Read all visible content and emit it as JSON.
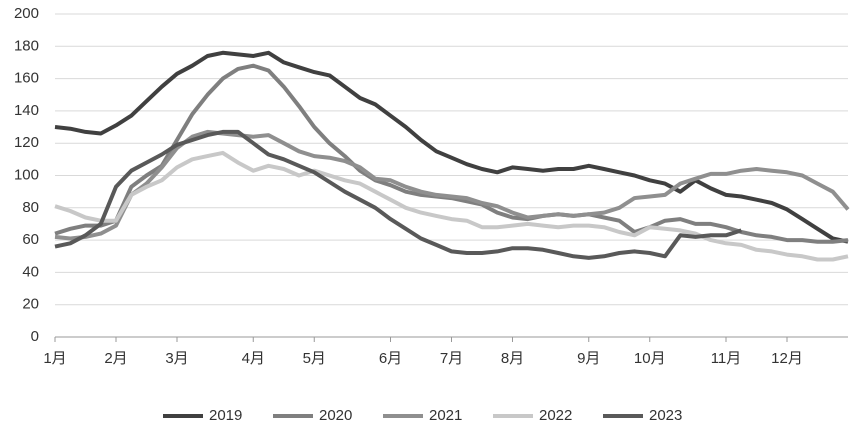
{
  "chart_data": {
    "type": "line",
    "categories": [
      "1月",
      null,
      null,
      null,
      "2月",
      null,
      null,
      null,
      "3月",
      null,
      null,
      null,
      null,
      "4月",
      null,
      null,
      null,
      "5月",
      null,
      null,
      null,
      null,
      "6月",
      null,
      null,
      null,
      "7月",
      null,
      null,
      null,
      "8月",
      null,
      null,
      null,
      null,
      "9月",
      null,
      null,
      null,
      "10月",
      null,
      null,
      null,
      null,
      "11月",
      null,
      null,
      null,
      "12月",
      null,
      null,
      null,
      null
    ],
    "ylim": [
      0,
      200
    ],
    "yticks": [
      0,
      20,
      40,
      60,
      80,
      100,
      120,
      140,
      160,
      180,
      200
    ],
    "grid": true,
    "legend": "bottom",
    "series": [
      {
        "name": "2019",
        "color": "#404040",
        "values": [
          130,
          129,
          127,
          126,
          131,
          137,
          146,
          155,
          163,
          168,
          174,
          176,
          175,
          174,
          176,
          170,
          167,
          164,
          162,
          155,
          148,
          144,
          137,
          130,
          122,
          115,
          111,
          107,
          104,
          102,
          105,
          104,
          103,
          104,
          104,
          106,
          104,
          102,
          100,
          97,
          95,
          90,
          97,
          92,
          88,
          87,
          85,
          83,
          79,
          73,
          67,
          61,
          59
        ]
      },
      {
        "name": "2020",
        "color": "#7f7f7f",
        "values": [
          64,
          67,
          69,
          69,
          72,
          93,
          100,
          106,
          122,
          138,
          150,
          160,
          166,
          168,
          165,
          155,
          143,
          130,
          120,
          112,
          103,
          97,
          94,
          90,
          88,
          87,
          86,
          84,
          82,
          77,
          74,
          73,
          75,
          76,
          75,
          76,
          74,
          72,
          65,
          68,
          72,
          73,
          70,
          70,
          68,
          65,
          63,
          62,
          60,
          60,
          59,
          59,
          60
        ]
      },
      {
        "name": "2021",
        "color": "#8f8f8f",
        "values": [
          62,
          61,
          62,
          64,
          69,
          88,
          95,
          105,
          117,
          124,
          127,
          126,
          125,
          124,
          125,
          120,
          115,
          112,
          111,
          109,
          105,
          98,
          97,
          93,
          90,
          88,
          87,
          86,
          83,
          81,
          77,
          74,
          75,
          76,
          75,
          76,
          77,
          80,
          86,
          87,
          88,
          95,
          98,
          101,
          101,
          103,
          104,
          103,
          102,
          100,
          95,
          90,
          79
        ]
      },
      {
        "name": "2022",
        "color": "#c8c8c8",
        "values": [
          81,
          78,
          74,
          72,
          72,
          88,
          93,
          97,
          105,
          110,
          112,
          114,
          108,
          103,
          106,
          104,
          100,
          103,
          100,
          97,
          95,
          90,
          85,
          80,
          77,
          75,
          73,
          72,
          68,
          68,
          69,
          70,
          69,
          68,
          69,
          69,
          68,
          65,
          63,
          68,
          67,
          66,
          64,
          60,
          58,
          57,
          54,
          53,
          51,
          50,
          48,
          48,
          50
        ]
      },
      {
        "name": "2023",
        "color": "#595959",
        "values": [
          56,
          58,
          63,
          70,
          93,
          103,
          108,
          113,
          119,
          122,
          125,
          127,
          127,
          120,
          113,
          110,
          106,
          102,
          96,
          90,
          85,
          80,
          73,
          67,
          61,
          57,
          53,
          52,
          52,
          53,
          55,
          55,
          54,
          52,
          50,
          49,
          50,
          52,
          53,
          52,
          50,
          63,
          62,
          63,
          63,
          66,
          null,
          null,
          null,
          null,
          null,
          null,
          null
        ]
      }
    ]
  }
}
